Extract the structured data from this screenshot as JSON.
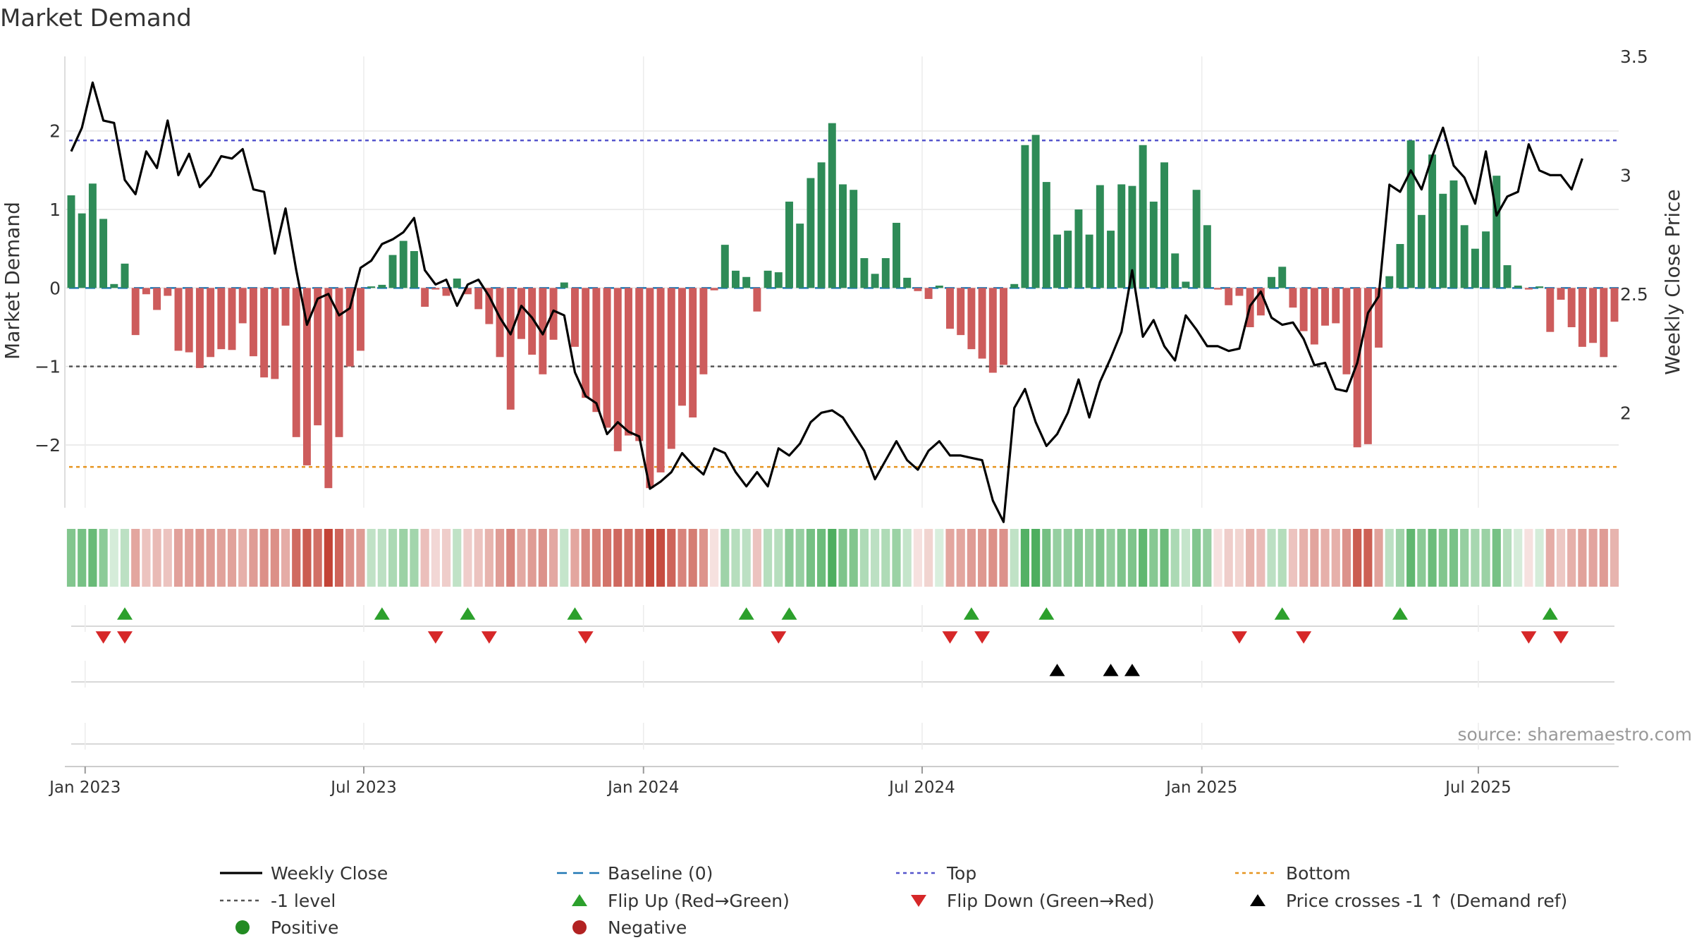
{
  "chart_data": {
    "type": "bar",
    "title": "Market Demand",
    "ylabel": "Market Demand",
    "y2label": "Weekly Close Price",
    "ylim": [
      -2.8,
      2.95
    ],
    "y2lim": [
      1.6,
      3.5
    ],
    "yticks": [
      2,
      1,
      0,
      -1,
      -2
    ],
    "ytick_labels": [
      "2",
      "1",
      "0",
      "−1",
      "−2"
    ],
    "y2ticks": [
      3.5,
      3,
      2.5,
      2
    ],
    "y2tick_labels": [
      "3.5",
      "3",
      "2.5",
      "2"
    ],
    "x_dates": {
      "start_week": 0,
      "end_week": 143,
      "ticks": [
        {
          "label": "Jan 2023",
          "week": 1.3
        },
        {
          "label": "Jul 2023",
          "week": 27.3
        },
        {
          "label": "Jan 2024",
          "week": 53.4
        },
        {
          "label": "Jul 2024",
          "week": 79.4
        },
        {
          "label": "Jan 2025",
          "week": 105.5
        },
        {
          "label": "Jul 2025",
          "week": 131.3
        }
      ]
    },
    "reference_lines": {
      "top": 1.88,
      "minus_one": -1,
      "bottom": -2.28,
      "baseline": 0
    },
    "demand": [
      1.18,
      0.95,
      1.33,
      0.88,
      0.05,
      0.31,
      -0.6,
      -0.08,
      -0.28,
      -0.1,
      -0.8,
      -0.82,
      -1.02,
      -0.88,
      -0.78,
      -0.79,
      -0.45,
      -0.87,
      -1.14,
      -1.16,
      -0.48,
      -1.9,
      -2.26,
      -1.75,
      -2.55,
      -1.9,
      -1.0,
      -0.8,
      0.02,
      0.04,
      0.42,
      0.6,
      0.47,
      -0.24,
      -0.02,
      -0.1,
      0.12,
      -0.08,
      -0.27,
      -0.46,
      -0.88,
      -1.55,
      -0.65,
      -0.85,
      -1.1,
      -0.66,
      0.07,
      -0.75,
      -1.4,
      -1.58,
      -1.78,
      -2.08,
      -1.88,
      -1.95,
      -2.55,
      -2.35,
      -2.05,
      -1.5,
      -1.65,
      -1.1,
      -0.03,
      0.55,
      0.22,
      0.14,
      -0.3,
      0.22,
      0.2,
      1.1,
      0.82,
      1.4,
      1.6,
      2.1,
      1.32,
      1.25,
      0.38,
      0.18,
      0.38,
      0.83,
      0.13,
      -0.04,
      -0.14,
      0.03,
      -0.52,
      -0.6,
      -0.78,
      -0.9,
      -1.08,
      -0.98,
      0.05,
      1.82,
      1.95,
      1.35,
      0.68,
      0.73,
      1.0,
      0.68,
      1.31,
      0.73,
      1.32,
      1.3,
      1.82,
      1.1,
      1.6,
      0.44,
      0.08,
      1.25,
      0.8,
      -0.02,
      -0.22,
      -0.1,
      -0.5,
      -0.35,
      0.14,
      0.27,
      -0.25,
      -0.55,
      -0.72,
      -0.48,
      -0.45,
      -1.1,
      -2.03,
      -1.99,
      -0.76,
      0.15,
      0.56,
      1.88,
      0.93,
      1.7,
      1.2,
      1.37,
      0.8,
      0.5,
      0.72,
      1.43,
      0.29,
      0.03,
      -0.02,
      0.02,
      -0.56,
      -0.15,
      -0.5,
      -0.75,
      -0.7,
      -0.88,
      -0.43
    ],
    "weekly_close": [
      3.1,
      3.2,
      3.39,
      3.23,
      3.22,
      2.98,
      2.92,
      3.1,
      3.03,
      3.23,
      3.0,
      3.09,
      2.95,
      3.0,
      3.08,
      3.07,
      3.11,
      2.94,
      2.93,
      2.67,
      2.86,
      2.6,
      2.37,
      2.48,
      2.5,
      2.41,
      2.44,
      2.61,
      2.64,
      2.71,
      2.73,
      2.76,
      2.82,
      2.6,
      2.54,
      2.56,
      2.45,
      2.54,
      2.56,
      2.49,
      2.4,
      2.33,
      2.45,
      2.4,
      2.33,
      2.43,
      2.41,
      2.17,
      2.07,
      2.04,
      1.91,
      1.96,
      1.92,
      1.9,
      1.68,
      1.71,
      1.75,
      1.83,
      1.78,
      1.74,
      1.85,
      1.83,
      1.75,
      1.69,
      1.75,
      1.69,
      1.85,
      1.82,
      1.87,
      1.96,
      2.0,
      2.01,
      1.98,
      1.91,
      1.84,
      1.72,
      1.8,
      1.88,
      1.8,
      1.76,
      1.84,
      1.88,
      1.82,
      1.82,
      1.81,
      1.8,
      1.63,
      1.54,
      2.02,
      2.1,
      1.96,
      1.86,
      1.91,
      2.0,
      2.14,
      1.98,
      2.13,
      2.23,
      2.34,
      2.6,
      2.32,
      2.39,
      2.28,
      2.22,
      2.41,
      2.35,
      2.28,
      2.28,
      2.26,
      2.27,
      2.45,
      2.51,
      2.4,
      2.37,
      2.38,
      2.31,
      2.2,
      2.21,
      2.1,
      2.09,
      2.21,
      2.42,
      2.49,
      2.96,
      2.93,
      3.02,
      2.94,
      3.08,
      3.2,
      3.04,
      2.99,
      2.88,
      3.1,
      2.83,
      2.91,
      2.93,
      3.13,
      3.02,
      3.0,
      3.0,
      2.94,
      3.07
    ],
    "heat_intensity": [
      0.6,
      0.65,
      0.72,
      0.55,
      0.2,
      0.32,
      0.45,
      0.3,
      0.35,
      0.3,
      0.48,
      0.48,
      0.52,
      0.5,
      0.47,
      0.47,
      0.4,
      0.5,
      0.56,
      0.56,
      0.42,
      0.75,
      0.82,
      0.72,
      0.95,
      0.78,
      0.55,
      0.5,
      0.3,
      0.32,
      0.4,
      0.48,
      0.44,
      0.32,
      0.2,
      0.25,
      0.3,
      0.25,
      0.3,
      0.38,
      0.5,
      0.62,
      0.44,
      0.5,
      0.55,
      0.44,
      0.28,
      0.45,
      0.6,
      0.64,
      0.7,
      0.76,
      0.72,
      0.74,
      0.92,
      0.9,
      0.78,
      0.62,
      0.66,
      0.54,
      0.15,
      0.46,
      0.35,
      0.32,
      0.3,
      0.35,
      0.35,
      0.55,
      0.5,
      0.66,
      0.7,
      0.85,
      0.62,
      0.6,
      0.38,
      0.32,
      0.38,
      0.48,
      0.28,
      0.15,
      0.22,
      0.18,
      0.45,
      0.45,
      0.5,
      0.52,
      0.56,
      0.55,
      0.3,
      0.82,
      0.85,
      0.66,
      0.5,
      0.52,
      0.58,
      0.52,
      0.62,
      0.52,
      0.62,
      0.62,
      0.76,
      0.58,
      0.7,
      0.4,
      0.28,
      0.6,
      0.5,
      0.15,
      0.25,
      0.22,
      0.38,
      0.34,
      0.32,
      0.36,
      0.3,
      0.4,
      0.46,
      0.4,
      0.4,
      0.55,
      0.82,
      0.8,
      0.47,
      0.32,
      0.45,
      0.76,
      0.56,
      0.7,
      0.6,
      0.64,
      0.5,
      0.42,
      0.48,
      0.65,
      0.35,
      0.2,
      0.15,
      0.2,
      0.42,
      0.28,
      0.4,
      0.47,
      0.46,
      0.5,
      0.38
    ],
    "flip_up_weeks": [
      5,
      29,
      37,
      47,
      63,
      67,
      84,
      91,
      113,
      124,
      138
    ],
    "flip_down_weeks": [
      3,
      5,
      34,
      39,
      48,
      66,
      82,
      85,
      109,
      115,
      136,
      139
    ],
    "price_cross_weeks": [
      92,
      97,
      99
    ],
    "colors": {
      "positive": "#2e8b57",
      "negative": "#cd5c5c",
      "close_line": "#000000",
      "baseline": "#1f77b4",
      "top": "#5555cc",
      "minus_one": "#555555",
      "bottom": "#e69520",
      "flip_up": "#2ca02c",
      "flip_down": "#d62728",
      "positive_dot": "#228b22",
      "negative_dot": "#b22222",
      "grid": "#e6e6e6",
      "axis_text": "#333333"
    },
    "legend": {
      "position": "bottom",
      "entries": [
        {
          "label": "Weekly Close",
          "style": "line-black"
        },
        {
          "label": "Baseline (0)",
          "style": "dash-blue"
        },
        {
          "label": "Top",
          "style": "dot-purple"
        },
        {
          "label": "Bottom",
          "style": "dot-orange"
        },
        {
          "label": "-1 level",
          "style": "dot-gray"
        },
        {
          "label": "Flip Up (Red→Green)",
          "style": "tri-up-green"
        },
        {
          "label": "Flip Down (Green→Red)",
          "style": "tri-down-red"
        },
        {
          "label": "Price crosses -1 ↑ (Demand ref)",
          "style": "tri-up-black"
        },
        {
          "label": "Positive",
          "style": "dot-green"
        },
        {
          "label": "Negative",
          "style": "dot-red"
        }
      ]
    },
    "source_text": "source: sharemaestro.com"
  }
}
